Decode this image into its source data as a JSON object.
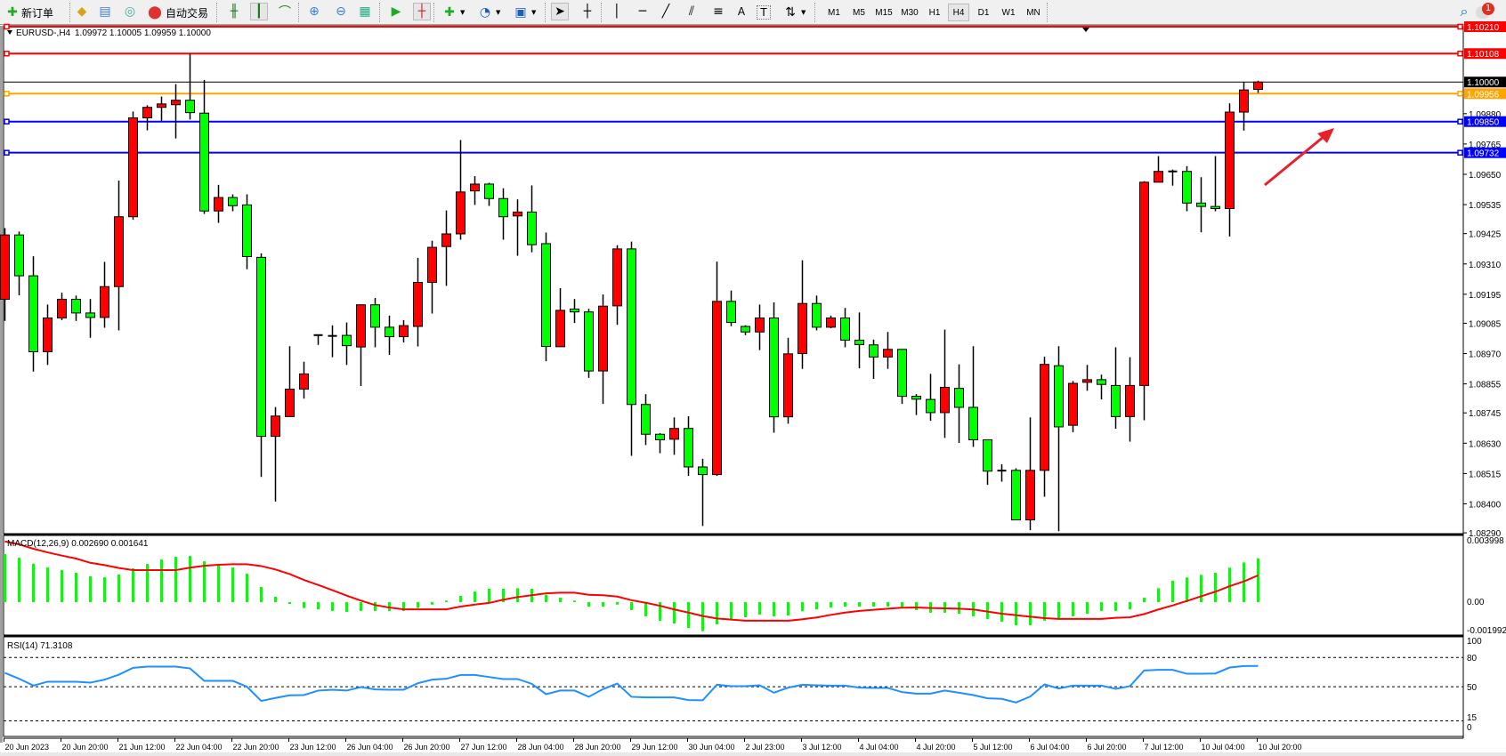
{
  "toolbar": {
    "new_order_label": "新订单",
    "auto_trade_label": "自动交易",
    "timeframes": [
      "M1",
      "M5",
      "M15",
      "M30",
      "H1",
      "H4",
      "D1",
      "W1",
      "MN"
    ],
    "active_timeframe": "H4",
    "notification_count": "1",
    "icons": [
      "new-order-icon",
      "market-watch-icon",
      "navigator-icon",
      "signals-icon",
      "auto-trading-icon",
      "bar-chart-icon",
      "candlestick-icon",
      "line-chart-icon",
      "zoom-in-icon",
      "zoom-out-icon",
      "tile-windows-icon",
      "autoscroll-icon",
      "chart-shift-icon",
      "indicators-icon",
      "periods-icon",
      "templates-icon",
      "cursor-icon",
      "crosshair-icon",
      "vertical-line-icon",
      "horizontal-line-icon",
      "trendline-icon",
      "equidistant-channel-icon",
      "fibonacci-icon",
      "text-icon",
      "text-label-icon",
      "arrows-icon",
      "search-icon",
      "notification-icon"
    ]
  },
  "chart_title": {
    "symbol": "EURUSD-,H4",
    "ohlc": "1.09972 1.10005 1.09959 1.10000"
  },
  "current_price": "1.10000",
  "hlines": [
    {
      "price": "1.10210",
      "color": "#ff0000"
    },
    {
      "price": "1.10108",
      "color": "#ff0000"
    },
    {
      "price": "1.09956",
      "color": "#ffa500"
    },
    {
      "price": "1.09850",
      "color": "#0000ff"
    },
    {
      "price": "1.09732",
      "color": "#0000ff"
    }
  ],
  "price_axis": {
    "ticks": [
      "1.09880",
      "1.09765",
      "1.09650",
      "1.09535",
      "1.09425",
      "1.09310",
      "1.09195",
      "1.09085",
      "1.08970",
      "1.08855",
      "1.08745",
      "1.08630",
      "1.08515",
      "1.08400",
      "1.08290"
    ]
  },
  "chart_data": [
    {
      "type": "candlestick",
      "ylim": [
        1.0829,
        1.10213
      ],
      "colors": {
        "bull": "#ff0000",
        "bear": "#00ff00",
        "wick": "#000000"
      },
      "ohlc": [
        [
          1.09176,
          1.09446,
          1.09094,
          1.0942
        ],
        [
          1.0942,
          1.09433,
          1.09191,
          1.09265
        ],
        [
          1.09265,
          1.09339,
          1.08902,
          1.08977
        ],
        [
          1.08977,
          1.09156,
          1.08927,
          1.09105
        ],
        [
          1.09105,
          1.09201,
          1.09097,
          1.09176
        ],
        [
          1.09176,
          1.0919,
          1.09094,
          1.09124
        ],
        [
          1.09124,
          1.09177,
          1.0903,
          1.09107
        ],
        [
          1.09107,
          1.09318,
          1.09068,
          1.09224
        ],
        [
          1.09224,
          1.09626,
          1.09058,
          1.09489
        ],
        [
          1.09489,
          1.09888,
          1.09478,
          1.09864
        ],
        [
          1.09864,
          1.09912,
          1.09817,
          1.09904
        ],
        [
          1.09904,
          1.09945,
          1.09853,
          1.09917
        ],
        [
          1.09914,
          1.09992,
          1.09786,
          1.09931
        ],
        [
          1.09931,
          1.10109,
          1.09858,
          1.09884
        ],
        [
          1.09882,
          1.10008,
          1.095,
          1.09511
        ],
        [
          1.09511,
          1.0961,
          1.09466,
          1.09562
        ],
        [
          1.09562,
          1.09574,
          1.0951,
          1.09531
        ],
        [
          1.09534,
          1.09574,
          1.0929,
          1.09338
        ],
        [
          1.09335,
          1.0935,
          1.08502,
          1.08656
        ],
        [
          1.08656,
          1.08767,
          1.08409,
          1.08733
        ],
        [
          1.08731,
          1.08998,
          1.08731,
          1.08835
        ],
        [
          1.08835,
          1.08939,
          1.08799,
          1.08893
        ],
        [
          1.09039,
          1.0904,
          1.09003,
          1.0904
        ],
        [
          1.09037,
          1.09077,
          1.08956,
          1.09036
        ],
        [
          1.09039,
          1.09088,
          1.08927,
          1.09
        ],
        [
          1.08995,
          1.09156,
          1.08847,
          1.09155
        ],
        [
          1.09155,
          1.09181,
          1.08994,
          1.0907
        ],
        [
          1.0907,
          1.09114,
          1.08965,
          1.09034
        ],
        [
          1.09034,
          1.09097,
          1.09012,
          1.09076
        ],
        [
          1.09073,
          1.09333,
          1.08997,
          1.0924
        ],
        [
          1.0924,
          1.09398,
          1.09122,
          1.09373
        ],
        [
          1.09376,
          1.09513,
          1.09227,
          1.09424
        ],
        [
          1.09424,
          1.0978,
          1.09402,
          1.09583
        ],
        [
          1.09587,
          1.09643,
          1.09534,
          1.09613
        ],
        [
          1.09613,
          1.09618,
          1.0953,
          1.09558
        ],
        [
          1.09558,
          1.09597,
          1.09402,
          1.09489
        ],
        [
          1.09492,
          1.09555,
          1.09341,
          1.09507
        ],
        [
          1.09507,
          1.09608,
          1.09354,
          1.09383
        ],
        [
          1.09387,
          1.09429,
          1.08941,
          1.08997
        ],
        [
          1.08996,
          1.09218,
          1.08995,
          1.09134
        ],
        [
          1.09139,
          1.09177,
          1.09086,
          1.09128
        ],
        [
          1.09128,
          1.0914,
          1.08878,
          1.08904
        ],
        [
          1.08904,
          1.09194,
          1.08779,
          1.0915
        ],
        [
          1.09151,
          1.09381,
          1.09079,
          1.09367
        ],
        [
          1.09367,
          1.09395,
          1.08582,
          1.08777
        ],
        [
          1.08777,
          1.08816,
          1.08623,
          1.08664
        ],
        [
          1.08664,
          1.08668,
          1.08592,
          1.08643
        ],
        [
          1.08645,
          1.08728,
          1.08586,
          1.08686
        ],
        [
          1.08686,
          1.08732,
          1.08506,
          1.0854
        ],
        [
          1.0854,
          1.08571,
          1.08316,
          1.08511
        ],
        [
          1.08511,
          1.09319,
          1.08506,
          1.09168
        ],
        [
          1.09168,
          1.09209,
          1.09074,
          1.09088
        ],
        [
          1.09073,
          1.09077,
          1.0904,
          1.09052
        ],
        [
          1.09052,
          1.09156,
          1.08983,
          1.09105
        ],
        [
          1.09105,
          1.09164,
          1.0867,
          1.0873
        ],
        [
          1.0873,
          1.0903,
          1.08704,
          1.08969
        ],
        [
          1.0897,
          1.09324,
          1.08912,
          1.0916
        ],
        [
          1.0916,
          1.0919,
          1.09058,
          1.0907
        ],
        [
          1.0907,
          1.09114,
          1.09066,
          1.09105
        ],
        [
          1.09105,
          1.09143,
          1.08994,
          1.09021
        ],
        [
          1.09021,
          1.09126,
          1.08914,
          1.09004
        ],
        [
          1.09003,
          1.09023,
          1.08874,
          1.08957
        ],
        [
          1.08957,
          1.09052,
          1.08912,
          1.08986
        ],
        [
          1.08986,
          1.08987,
          1.08779,
          1.08808
        ],
        [
          1.08808,
          1.08816,
          1.08737,
          1.08797
        ],
        [
          1.08796,
          1.08893,
          1.08715,
          1.08746
        ],
        [
          1.08746,
          1.09061,
          1.0865,
          1.08842
        ],
        [
          1.08838,
          1.08929,
          1.08631,
          1.08766
        ],
        [
          1.08766,
          1.08998,
          1.08616,
          1.08643
        ],
        [
          1.08643,
          1.08644,
          1.08472,
          1.08524
        ],
        [
          1.08525,
          1.0855,
          1.08484,
          1.08526
        ],
        [
          1.08527,
          1.08535,
          1.08338,
          1.08339
        ],
        [
          1.08339,
          1.08728,
          1.083,
          1.08527
        ],
        [
          1.08527,
          1.08958,
          1.08427,
          1.08929
        ],
        [
          1.08924,
          1.08998,
          1.08296,
          1.08692
        ],
        [
          1.08698,
          1.08866,
          1.08672,
          1.08857
        ],
        [
          1.08861,
          1.08927,
          1.08829,
          1.08871
        ],
        [
          1.08871,
          1.0889,
          1.08796,
          1.08853
        ],
        [
          1.08849,
          1.08994,
          1.08685,
          1.08731
        ],
        [
          1.08731,
          1.08956,
          1.08636,
          1.08849
        ],
        [
          1.08849,
          1.09624,
          1.08717,
          1.0962
        ],
        [
          1.0962,
          1.09719,
          1.09619,
          1.09661
        ],
        [
          1.09655,
          1.09668,
          1.09607,
          1.09661
        ],
        [
          1.09661,
          1.09681,
          1.0951,
          1.09541
        ],
        [
          1.09541,
          1.09639,
          1.0943,
          1.09528
        ],
        [
          1.09528,
          1.09719,
          1.0951,
          1.0952
        ],
        [
          1.0952,
          1.09919,
          1.09414,
          1.09886
        ],
        [
          1.09886,
          1.10001,
          1.09816,
          1.0997
        ],
        [
          1.09972,
          1.10005,
          1.09959,
          1.1
        ]
      ],
      "time_labels": [
        "20 Jun 2023",
        "20 Jun 20:00",
        "21 Jun 12:00",
        "22 Jun 04:00",
        "22 Jun 20:00",
        "23 Jun 12:00",
        "26 Jun 04:00",
        "26 Jun 20:00",
        "27 Jun 12:00",
        "28 Jun 04:00",
        "28 Jun 20:00",
        "29 Jun 12:00",
        "30 Jun 04:00",
        "2 Jul 23:00",
        "3 Jul 12:00",
        "4 Jul 04:00",
        "4 Jul 20:00",
        "5 Jul 12:00",
        "6 Jul 04:00",
        "6 Jul 20:00",
        "7 Jul 12:00",
        "10 Jul 04:00",
        "10 Jul 20:00"
      ]
    },
    {
      "type": "bar+line",
      "label": "MACD(12,26,9) 0.002690 0.001641",
      "ylim": [
        -0.001992,
        0.003998
      ],
      "ticks": [
        "0.003998",
        "0.00",
        "-0.001992"
      ],
      "colors": {
        "histogram": "#00ff00",
        "signal": "#ff0000"
      },
      "histogram": [
        0.00294,
        0.00272,
        0.00236,
        0.00212,
        0.00196,
        0.0018,
        0.00158,
        0.00152,
        0.00169,
        0.00207,
        0.00234,
        0.00261,
        0.00278,
        0.00283,
        0.0025,
        0.00225,
        0.00212,
        0.00174,
        0.00093,
        0.00033,
        -0.00011,
        -0.00036,
        -0.00044,
        -0.00054,
        -0.0006,
        -0.00054,
        -0.00054,
        -0.00054,
        -0.00054,
        -0.00036,
        -0.00015,
        9e-05,
        0.00038,
        0.00065,
        0.00082,
        0.00082,
        0.00085,
        0.00082,
        0.00045,
        0.00027,
        9e-05,
        -0.00027,
        -0.00027,
        -0.00015,
        -0.00049,
        -0.00087,
        -0.00114,
        -0.00131,
        -0.00158,
        -0.00178,
        -0.00136,
        -0.00103,
        -0.00093,
        -0.00076,
        -0.00087,
        -0.00082,
        -0.00056,
        -0.00044,
        -0.00033,
        -0.00027,
        -0.00027,
        -0.00027,
        -0.00027,
        -0.00038,
        -0.00049,
        -0.00065,
        -0.00065,
        -0.00071,
        -0.00087,
        -0.00103,
        -0.0012,
        -0.00142,
        -0.00142,
        -0.00114,
        -0.00103,
        -0.00087,
        -0.00071,
        -0.00054,
        -0.00054,
        -0.00044,
        0.00027,
        0.00085,
        0.00131,
        0.00151,
        0.00167,
        0.0018,
        0.00211,
        0.00243,
        0.00269
      ],
      "signal": [
        0.00372,
        0.00354,
        0.00327,
        0.00305,
        0.00285,
        0.00267,
        0.00241,
        0.00227,
        0.00209,
        0.00196,
        0.00196,
        0.00196,
        0.00196,
        0.00211,
        0.00223,
        0.00229,
        0.00232,
        0.00232,
        0.00221,
        0.002,
        0.00172,
        0.00136,
        0.00105,
        0.00073,
        0.0004,
        9e-05,
        -0.00018,
        -0.00033,
        -0.00044,
        -0.00044,
        -0.00044,
        -0.00044,
        -0.00027,
        -0.00015,
        -5e-05,
        0.00015,
        0.00031,
        0.00042,
        0.00054,
        0.00058,
        0.00058,
        0.00045,
        0.00042,
        0.00034,
        0.00012,
        -4e-05,
        -0.00022,
        -0.00045,
        -0.00064,
        -0.00085,
        -0.001,
        -0.00107,
        -0.00114,
        -0.00114,
        -0.00114,
        -0.00114,
        -0.00105,
        -0.00094,
        -0.00078,
        -0.00064,
        -0.00054,
        -0.00047,
        -0.0004,
        -0.00034,
        -0.00033,
        -0.00036,
        -0.00038,
        -0.0004,
        -0.00045,
        -0.00058,
        -0.00071,
        -0.0008,
        -0.00089,
        -0.00098,
        -0.00103,
        -0.00103,
        -0.00103,
        -0.00103,
        -0.00096,
        -0.00093,
        -0.00073,
        -0.00045,
        -0.0002,
        7e-05,
        0.00036,
        0.00064,
        0.00098,
        0.00127,
        0.00164
      ]
    },
    {
      "type": "line",
      "label": "RSI(14) 71.3108",
      "ylim": [
        0,
        100
      ],
      "levels": [
        80,
        50,
        15
      ],
      "ticks": [
        "100",
        "80",
        "50",
        "15",
        "0"
      ],
      "colors": {
        "line": "#1e90ff"
      },
      "values": [
        64.2,
        58.2,
        51.2,
        55.2,
        55.2,
        55.2,
        54.2,
        57.3,
        62.4,
        69.4,
        70.6,
        70.6,
        70.6,
        68.8,
        56.1,
        56.1,
        56.1,
        50.0,
        35.5,
        38.5,
        41.2,
        41.5,
        46.1,
        47.0,
        46.1,
        49.7,
        47.3,
        47.0,
        47.0,
        53.6,
        57.3,
        58.2,
        62.1,
        62.1,
        60.0,
        57.9,
        57.9,
        53.0,
        42.4,
        46.1,
        46.1,
        39.7,
        47.6,
        53.3,
        39.7,
        39.1,
        39.1,
        39.1,
        36.4,
        36.1,
        52.1,
        50.6,
        50.6,
        51.5,
        43.9,
        49.1,
        52.1,
        51.5,
        51.2,
        51.2,
        49.1,
        48.8,
        48.8,
        44.5,
        43.0,
        43.0,
        46.1,
        43.9,
        41.5,
        38.2,
        37.6,
        33.9,
        40.0,
        52.4,
        48.2,
        51.2,
        51.2,
        51.2,
        47.9,
        50.6,
        66.7,
        67.3,
        67.3,
        63.3,
        63.3,
        63.6,
        69.7,
        71.2,
        71.31
      ]
    }
  ],
  "annotation": {
    "type": "arrow",
    "color": "#e8202a"
  }
}
